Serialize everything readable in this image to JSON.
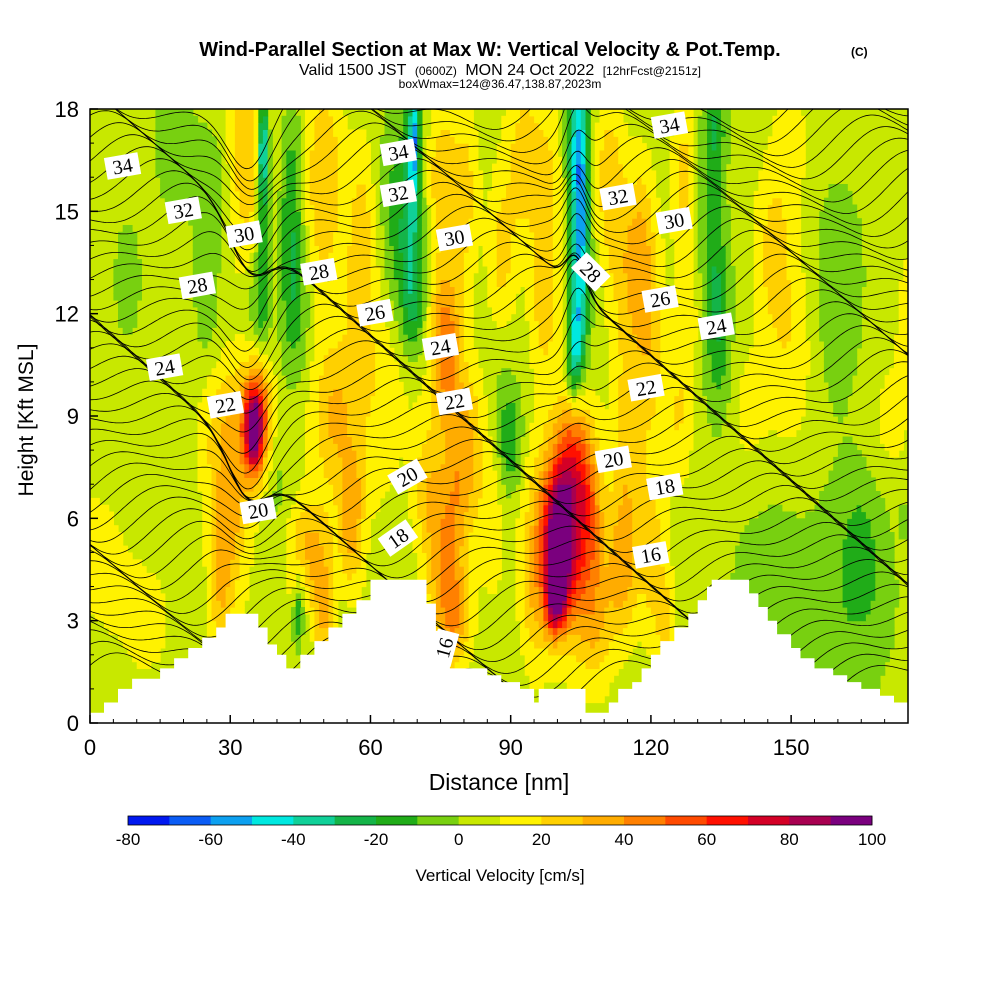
{
  "chart_data": {
    "type": "heatmap",
    "title": "Wind-Parallel Section at Max W: Vertical Velocity & Pot.Temp.",
    "title_mark": "(C)",
    "subtitle_parts": [
      "Valid 1500 JST",
      "(0600Z)",
      "MON 24 Oct 2022",
      "[12hrFcst@2151z]"
    ],
    "info": "boxWmax=124@36.47,138.87,2023m",
    "xlabel": "Distance [nm]",
    "ylabel": "Height [Kft MSL]",
    "xlim": [
      0,
      175
    ],
    "ylim": [
      0,
      18
    ],
    "xticks": [
      0,
      30,
      60,
      90,
      120,
      150
    ],
    "yticks": [
      0,
      3,
      6,
      9,
      12,
      15,
      18
    ],
    "colorbar": {
      "label": "Vertical Velocity [cm/s]",
      "tick_labels": [
        "-80",
        "-60",
        "-40",
        "-20",
        "0",
        "20",
        "40",
        "60",
        "80",
        "100"
      ],
      "bins": [
        -80,
        -70,
        -60,
        -50,
        -40,
        -30,
        -20,
        -10,
        0,
        10,
        20,
        30,
        40,
        50,
        60,
        70,
        80,
        90,
        100
      ],
      "colors": [
        "#0018f0",
        "#0a5cf5",
        "#0ca0f0",
        "#00e8e0",
        "#10d098",
        "#14b448",
        "#20ac18",
        "#78d010",
        "#c8e800",
        "#fff200",
        "#ffd000",
        "#ffac00",
        "#ff8000",
        "#ff4a00",
        "#ff1000",
        "#d40026",
        "#a80050",
        "#7a007e"
      ]
    },
    "velocity_cells": [
      {
        "x": [
          28,
          42
        ],
        "y": [
          6.5,
          10
        ],
        "level": "warm"
      },
      {
        "x": [
          33,
          39
        ],
        "y": [
          8,
          10.5
        ],
        "level": "hot"
      },
      {
        "x": [
          94,
          110
        ],
        "y": [
          2,
          8
        ],
        "level": "warm"
      },
      {
        "x": [
          97,
          107
        ],
        "y": [
          3.5,
          7.5
        ],
        "level": "hot"
      },
      {
        "x": [
          34,
          40
        ],
        "y": [
          12,
          18
        ],
        "level": "cold"
      },
      {
        "x": [
          67,
          72
        ],
        "y": [
          12,
          18
        ],
        "level": "cold"
      },
      {
        "x": [
          102,
          107
        ],
        "y": [
          10,
          18
        ],
        "level": "deep-cold"
      },
      {
        "x": [
          130,
          140
        ],
        "y": [
          9,
          18
        ],
        "level": "cool"
      }
    ],
    "theta_label_values": [
      {
        "x": 7,
        "y": 16.3,
        "label": "34"
      },
      {
        "x": 66,
        "y": 16.7,
        "label": "34"
      },
      {
        "x": 124,
        "y": 17.5,
        "label": "34"
      },
      {
        "x": 20,
        "y": 15,
        "label": "32"
      },
      {
        "x": 66,
        "y": 15.5,
        "label": "32"
      },
      {
        "x": 113,
        "y": 15.4,
        "label": "32"
      },
      {
        "x": 33,
        "y": 14.3,
        "label": "30"
      },
      {
        "x": 78,
        "y": 14.2,
        "label": "30"
      },
      {
        "x": 125,
        "y": 14.7,
        "label": "30"
      },
      {
        "x": 23,
        "y": 12.8,
        "label": "28"
      },
      {
        "x": 49,
        "y": 13.2,
        "label": "28"
      },
      {
        "x": 107,
        "y": 13.2,
        "label": "28"
      },
      {
        "x": 61,
        "y": 12,
        "label": "26"
      },
      {
        "x": 122,
        "y": 12.4,
        "label": "26"
      },
      {
        "x": 16,
        "y": 10.4,
        "label": "24"
      },
      {
        "x": 75,
        "y": 11,
        "label": "24"
      },
      {
        "x": 134,
        "y": 11.6,
        "label": "24"
      },
      {
        "x": 29,
        "y": 9.3,
        "label": "22"
      },
      {
        "x": 78,
        "y": 9.4,
        "label": "22"
      },
      {
        "x": 119,
        "y": 9.8,
        "label": "22"
      },
      {
        "x": 36,
        "y": 6.2,
        "label": "20"
      },
      {
        "x": 68,
        "y": 7.2,
        "label": "20"
      },
      {
        "x": 112,
        "y": 7.7,
        "label": "20"
      },
      {
        "x": 123,
        "y": 6.9,
        "label": "18"
      },
      {
        "x": 66,
        "y": 5.4,
        "label": "18"
      },
      {
        "x": 120,
        "y": 4.9,
        "label": "16"
      },
      {
        "x": 76,
        "y": 2.2,
        "label": "16"
      }
    ],
    "terrain": [
      [
        0,
        0.3
      ],
      [
        3,
        0.6
      ],
      [
        6,
        1
      ],
      [
        9,
        1.3
      ],
      [
        15,
        1.6
      ],
      [
        18,
        1.9
      ],
      [
        21,
        2.2
      ],
      [
        24,
        2.5
      ],
      [
        27,
        2.8
      ],
      [
        29,
        3.2
      ],
      [
        34,
        3.2
      ],
      [
        36,
        2.8
      ],
      [
        38,
        2.3
      ],
      [
        40,
        2
      ],
      [
        42,
        1.6
      ],
      [
        45,
        2
      ],
      [
        48,
        2.4
      ],
      [
        51,
        2.8
      ],
      [
        54,
        3.2
      ],
      [
        57,
        3.6
      ],
      [
        60,
        4.2
      ],
      [
        70,
        4.2
      ],
      [
        72,
        3.5
      ],
      [
        74,
        2.7
      ],
      [
        76,
        2.2
      ],
      [
        77,
        1.6
      ],
      [
        82,
        1.6
      ],
      [
        85,
        1.4
      ],
      [
        88,
        1.2
      ],
      [
        92,
        1
      ],
      [
        95,
        0.6
      ],
      [
        96,
        1
      ],
      [
        105,
        1
      ],
      [
        106,
        0.3
      ],
      [
        109,
        0.3
      ],
      [
        111,
        0.6
      ],
      [
        113,
        1
      ],
      [
        116,
        1.2
      ],
      [
        118,
        1.6
      ],
      [
        120,
        2
      ],
      [
        122,
        2.4
      ],
      [
        125,
        2.8
      ],
      [
        128,
        3.2
      ],
      [
        130,
        3.6
      ],
      [
        132,
        4
      ],
      [
        133,
        4.2
      ],
      [
        139,
        4.2
      ],
      [
        141,
        3.8
      ],
      [
        143,
        3.4
      ],
      [
        145,
        3
      ],
      [
        147,
        2.6
      ],
      [
        150,
        2.2
      ],
      [
        152,
        1.9
      ],
      [
        155,
        1.6
      ],
      [
        159,
        1.4
      ],
      [
        162,
        1.2
      ],
      [
        165,
        1
      ],
      [
        169,
        0.8
      ],
      [
        172,
        0.6
      ],
      [
        175,
        0.3
      ]
    ]
  }
}
